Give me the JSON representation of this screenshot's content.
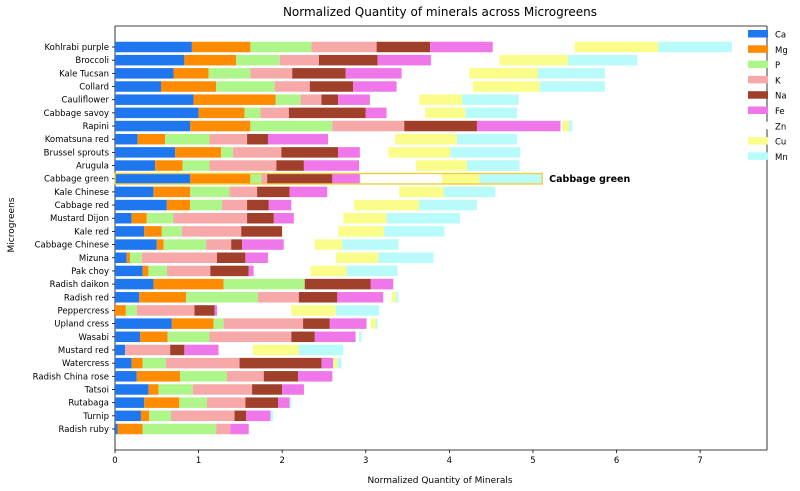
{
  "chart_data": {
    "type": "bar",
    "orientation": "horizontal",
    "stacked": true,
    "title": "Normalized Quantity of minerals across Microgreens",
    "xlabel": "Normalized Quantity of Minerals",
    "ylabel": "Microgreens",
    "xlim": [
      0,
      7.8
    ],
    "xticks": [
      0,
      1,
      2,
      3,
      4,
      5,
      6,
      7
    ],
    "grid": false,
    "legend_position": "top-right",
    "categories": [
      "Kohlrabi purple",
      "Broccoli",
      "Kale Tucsan",
      "Collard",
      "Cauliflower",
      "Cabbage savoy",
      "Rapini",
      "Komatsuna red",
      "Brussel sprouts",
      "Arugula",
      "Cabbage green",
      "Kale Chinese",
      "Cabbage red",
      "Mustard Dijon",
      "Kale red",
      "Cabbage Chinese",
      "Mizuna",
      "Pak choy",
      "Radish daikon",
      "Radish red",
      "Peppercress",
      "Upland cress",
      "Wasabi",
      "Mustard red",
      "Watercress",
      "Radish China rose",
      "Tatsoi",
      "Rutabaga",
      "Turnip",
      "Radish ruby"
    ],
    "series": [
      {
        "name": "Ca",
        "color": "#1f77f0",
        "values": [
          0.92,
          0.83,
          0.7,
          0.55,
          0.94,
          1.0,
          0.9,
          0.27,
          0.72,
          0.48,
          0.9,
          0.46,
          0.62,
          0.2,
          0.35,
          0.5,
          0.14,
          0.33,
          0.46,
          0.29,
          0.0,
          0.68,
          0.3,
          0.12,
          0.2,
          0.26,
          0.4,
          0.35,
          0.31,
          0.03
        ]
      },
      {
        "name": "Mg",
        "color": "#ff8c00",
        "values": [
          0.7,
          0.62,
          0.42,
          0.66,
          0.98,
          0.55,
          0.72,
          0.33,
          0.55,
          0.33,
          0.72,
          0.44,
          0.28,
          0.18,
          0.21,
          0.08,
          0.04,
          0.07,
          0.84,
          0.56,
          0.13,
          0.5,
          0.33,
          0.0,
          0.13,
          0.52,
          0.12,
          0.42,
          0.1,
          0.3
        ]
      },
      {
        "name": "P",
        "color": "#aef58a",
        "values": [
          0.73,
          0.52,
          0.5,
          0.7,
          0.3,
          0.19,
          0.98,
          0.53,
          0.14,
          0.32,
          0.13,
          0.47,
          0.38,
          0.32,
          0.24,
          0.51,
          0.14,
          0.22,
          0.97,
          0.86,
          0.13,
          0.12,
          0.5,
          0.0,
          0.28,
          0.56,
          0.41,
          0.33,
          0.26,
          0.88
        ]
      },
      {
        "name": "K",
        "color": "#f7a8a8",
        "values": [
          0.78,
          0.47,
          0.5,
          0.42,
          0.25,
          0.34,
          0.86,
          0.45,
          0.58,
          0.8,
          0.07,
          0.33,
          0.3,
          0.88,
          0.71,
          0.3,
          0.9,
          0.52,
          0.0,
          0.49,
          0.69,
          0.95,
          0.98,
          0.54,
          0.88,
          0.44,
          0.71,
          0.46,
          0.76,
          0.17
        ]
      },
      {
        "name": "Na",
        "color": "#a0402a",
        "values": [
          0.64,
          0.7,
          0.64,
          0.52,
          0.2,
          0.92,
          0.87,
          0.25,
          0.68,
          0.33,
          0.78,
          0.39,
          0.26,
          0.32,
          0.49,
          0.13,
          0.34,
          0.46,
          0.79,
          0.46,
          0.24,
          0.32,
          0.28,
          0.17,
          0.98,
          0.41,
          0.36,
          0.39,
          0.14,
          0.0
        ]
      },
      {
        "name": "Fe",
        "color": "#f077ea",
        "values": [
          0.75,
          0.64,
          0.67,
          0.52,
          0.38,
          0.25,
          1.0,
          0.72,
          0.26,
          0.66,
          0.33,
          0.45,
          0.27,
          0.24,
          0.0,
          0.5,
          0.27,
          0.06,
          0.27,
          0.55,
          0.03,
          0.44,
          0.49,
          0.41,
          0.14,
          0.41,
          0.26,
          0.14,
          0.29,
          0.22
        ]
      },
      {
        "name": "Zn",
        "color": "#ffffff",
        "values": [
          0.98,
          0.82,
          0.81,
          0.91,
          0.59,
          0.46,
          0.02,
          0.8,
          0.34,
          0.68,
          0.98,
          0.86,
          0.75,
          0.59,
          0.67,
          0.37,
          0.81,
          0.68,
          0.39,
          0.1,
          0.89,
          0.05,
          0.04,
          0.41,
          0.0,
          0.0,
          0.0,
          0.0,
          0.0,
          0.0
        ]
      },
      {
        "name": "Cu",
        "color": "#fbfd8a",
        "values": [
          1.0,
          0.82,
          0.82,
          0.8,
          0.51,
          0.48,
          0.08,
          0.74,
          0.74,
          0.61,
          0.45,
          0.53,
          0.78,
          0.52,
          0.55,
          0.33,
          0.51,
          0.43,
          0.0,
          0.05,
          0.53,
          0.06,
          0.0,
          0.55,
          0.05,
          0.0,
          0.0,
          0.0,
          0.0,
          0.0
        ]
      },
      {
        "name": "Mn",
        "color": "#b9fbfb",
        "values": [
          0.88,
          0.83,
          0.8,
          0.78,
          0.68,
          0.62,
          0.04,
          0.72,
          0.84,
          0.63,
          0.75,
          0.62,
          0.69,
          0.88,
          0.72,
          0.67,
          0.66,
          0.61,
          0.0,
          0.03,
          0.52,
          0.02,
          0.03,
          0.53,
          0.05,
          0.0,
          0.0,
          0.02,
          0.03,
          0.0
        ]
      }
    ],
    "annotations": [
      {
        "category": "Cabbage green",
        "text": "Cabbage green",
        "highlight": true
      }
    ]
  }
}
